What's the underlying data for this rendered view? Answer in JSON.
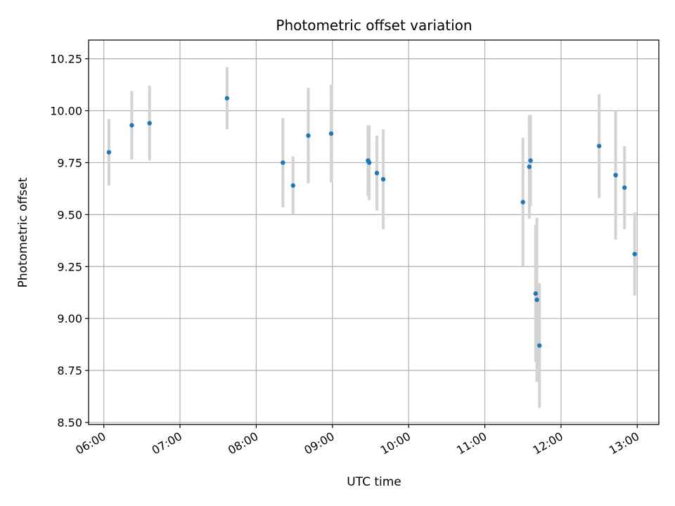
{
  "chart_data": {
    "type": "scatter",
    "title": "Photometric offset variation",
    "xlabel": "UTC time",
    "ylabel": "Photometric offset",
    "xlim": [
      "05:48",
      "13:17"
    ],
    "ylim": [
      8.49,
      10.34
    ],
    "grid": true,
    "x_ticks": [
      "06:00",
      "07:00",
      "08:00",
      "09:00",
      "10:00",
      "11:00",
      "12:00",
      "13:00"
    ],
    "y_ticks": [
      "8.50",
      "8.75",
      "9.00",
      "9.25",
      "9.50",
      "9.75",
      "10.00",
      "10.25"
    ],
    "colors": {
      "marker": "#1f77b4",
      "errorbar": "#d3d3d3",
      "grid": "#b0b0b0"
    },
    "series": [
      {
        "points": [
          {
            "x": "06:04",
            "y": 9.8,
            "err": 0.16
          },
          {
            "x": "06:22",
            "y": 9.93,
            "err": 0.165
          },
          {
            "x": "06:36",
            "y": 9.94,
            "err": 0.18
          },
          {
            "x": "07:37",
            "y": 10.06,
            "err": 0.15
          },
          {
            "x": "08:21",
            "y": 9.75,
            "err": 0.215
          },
          {
            "x": "08:29",
            "y": 9.64,
            "err": 0.14
          },
          {
            "x": "08:41",
            "y": 9.88,
            "err": 0.23
          },
          {
            "x": "08:59",
            "y": 9.89,
            "err": 0.235
          },
          {
            "x": "09:28",
            "y": 9.76,
            "err": 0.17
          },
          {
            "x": "09:29",
            "y": 9.75,
            "err": 0.18
          },
          {
            "x": "09:35",
            "y": 9.7,
            "err": 0.18
          },
          {
            "x": "09:40",
            "y": 9.67,
            "err": 0.24
          },
          {
            "x": "11:30",
            "y": 9.56,
            "err": 0.31
          },
          {
            "x": "11:35",
            "y": 9.73,
            "err": 0.25
          },
          {
            "x": "11:36",
            "y": 9.76,
            "err": 0.22
          },
          {
            "x": "11:40",
            "y": 9.12,
            "err": 0.33
          },
          {
            "x": "11:41",
            "y": 9.09,
            "err": 0.395
          },
          {
            "x": "11:43",
            "y": 8.87,
            "err": 0.3
          },
          {
            "x": "12:30",
            "y": 9.83,
            "err": 0.25
          },
          {
            "x": "12:43",
            "y": 9.69,
            "err": 0.31
          },
          {
            "x": "12:50",
            "y": 9.63,
            "err": 0.2
          },
          {
            "x": "12:58",
            "y": 9.31,
            "err": 0.2
          }
        ]
      }
    ]
  }
}
